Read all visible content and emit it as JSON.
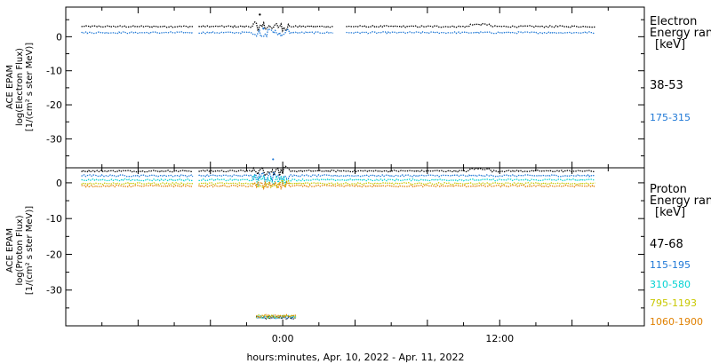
{
  "chart_data": [
    {
      "type": "line",
      "panel": "electron",
      "ylabel_lines": [
        "ACE EPAM",
        "log(Electron Flux)",
        "[1/(cm² s ster MeV)]"
      ],
      "yticks": [
        0,
        -10,
        -20,
        -30
      ],
      "ylim": [
        -38.5,
        8.7
      ],
      "legend_title": [
        "Electron",
        "Energy ranges",
        "[keV]"
      ],
      "series": [
        {
          "name": "38-53",
          "color": "#000000",
          "baseline": 3.0,
          "spike": {
            "x": 16.1,
            "y": 6.5
          },
          "gaps": [
            [
              10.6,
              10.95
            ],
            [
              22.3,
              23.2
            ]
          ]
        },
        {
          "name": "175-315",
          "color": "#1f78d6",
          "baseline": 1.2,
          "spike": {
            "x": 16.4,
            "y": 2.4
          },
          "outlier": {
            "x": 17.2,
            "y": -36.0
          },
          "gaps": [
            [
              10.6,
              10.95
            ],
            [
              22.3,
              23.2
            ]
          ]
        }
      ]
    },
    {
      "type": "line",
      "panel": "proton",
      "ylabel_lines": [
        "ACE EPAM",
        "log(Proton Flux)",
        "[1/(cm² s ster MeV)]"
      ],
      "yticks": [
        0,
        -10,
        -20,
        -30
      ],
      "ylim": [
        -40.0,
        4.2
      ],
      "legend_title": [
        "Proton",
        "Energy ranges",
        "[keV]"
      ],
      "series": [
        {
          "name": "47-68",
          "color": "#000000",
          "baseline": 3.3,
          "gaps": [
            [
              10.6,
              10.95
            ]
          ]
        },
        {
          "name": "115-195",
          "color": "#1f78d6",
          "baseline": 2.0,
          "gaps": [
            [
              10.6,
              10.95
            ]
          ]
        },
        {
          "name": "310-580",
          "color": "#00d2d2",
          "baseline": 0.8,
          "gaps": [
            [
              10.6,
              10.95
            ]
          ]
        },
        {
          "name": "795-1193",
          "color": "#c8c800",
          "baseline": -0.2,
          "gaps": [
            [
              10.6,
              10.95
            ]
          ]
        },
        {
          "name": "1060-1900",
          "color": "#e08000",
          "baseline": -0.9,
          "gaps": [
            [
              10.6,
              10.95
            ]
          ]
        }
      ],
      "dropouts": {
        "x_range": [
          15.8,
          19.2
        ],
        "y": -37.5
      }
    }
  ],
  "x_axis": {
    "xlim": [
      0,
      48
    ],
    "ticks": [
      {
        "x": 18,
        "label": "0:00"
      },
      {
        "x": 36,
        "label": "12:00"
      }
    ],
    "minor_step": 3,
    "data_end": 44,
    "xlabel": "hours:minutes, Apr. 10, 2022 - Apr. 11, 2022"
  }
}
